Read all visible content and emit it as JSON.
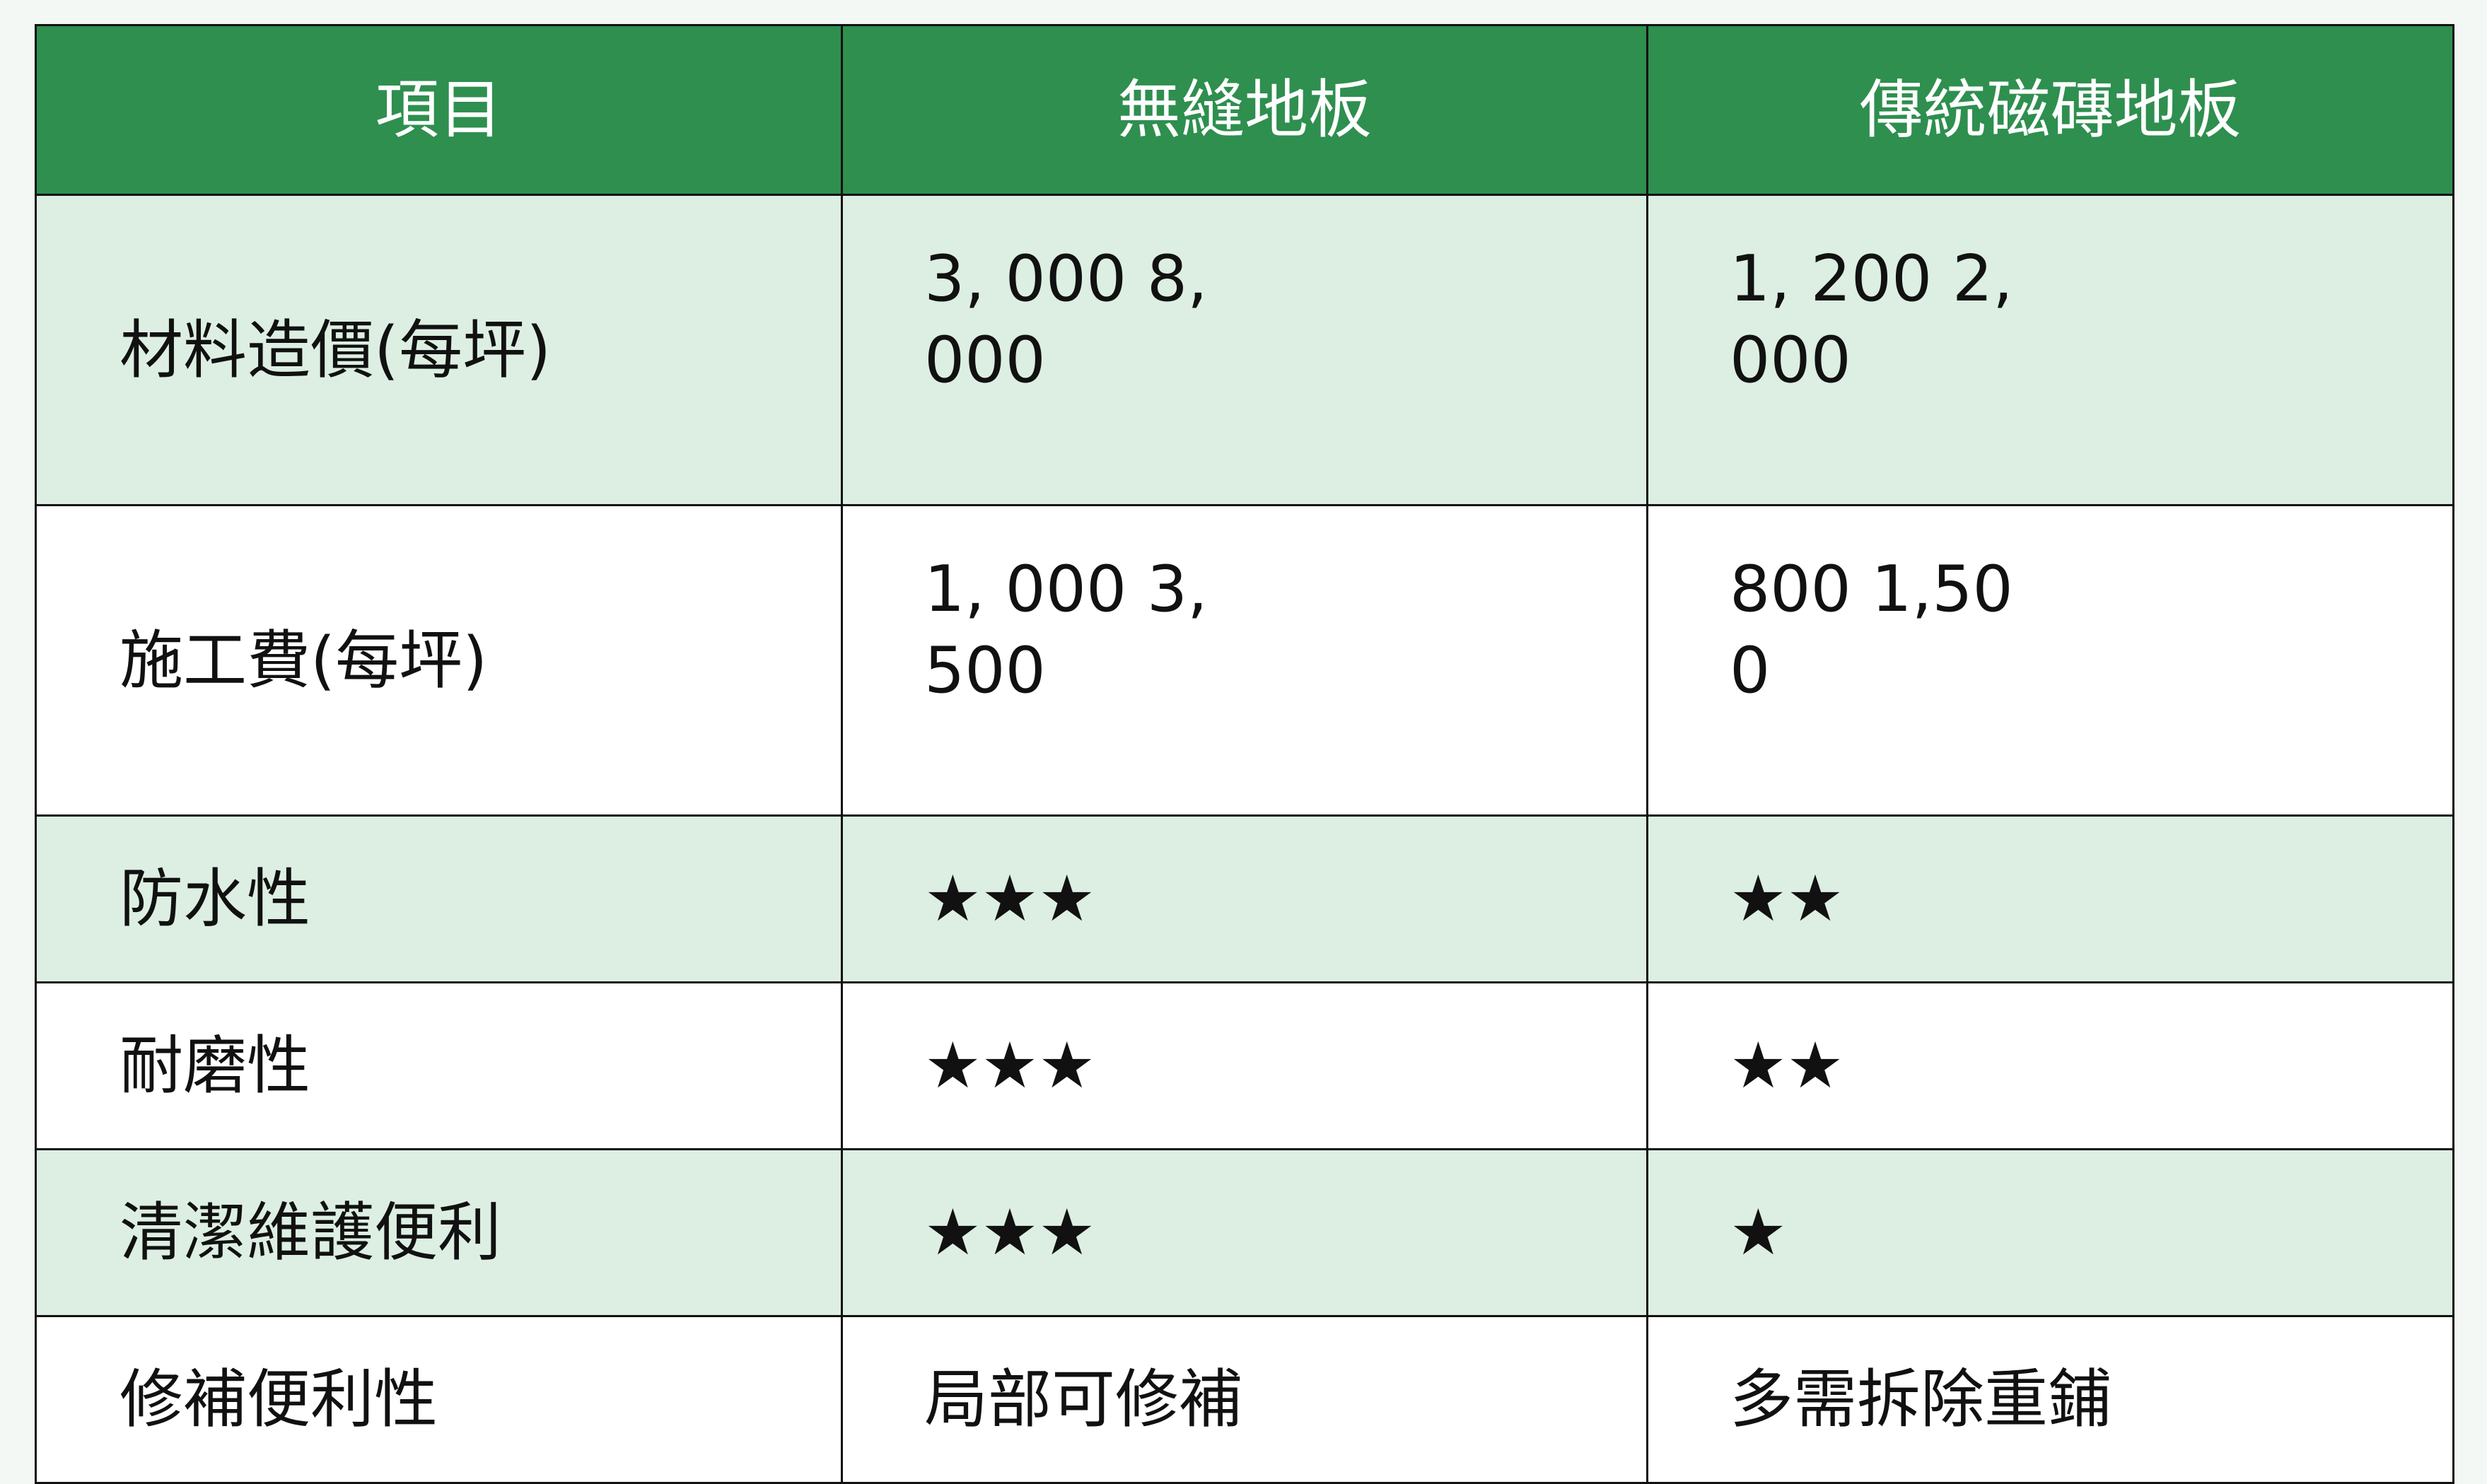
{
  "table": {
    "headers": [
      "項目",
      "無縫地板",
      "傳統磁磚地板"
    ],
    "rows": [
      {
        "label": "材料造價(每坪)",
        "seamless": "3, 000 8,\n000",
        "tile": "1, 200 2,\n000"
      },
      {
        "label": "施工費(每坪)",
        "seamless": "1, 000 3,\n500",
        "tile": "800 1,50\n0"
      },
      {
        "label": "防水性",
        "seamless": "★★★",
        "tile": "★★"
      },
      {
        "label": "耐磨性",
        "seamless": "★★★",
        "tile": "★★"
      },
      {
        "label": "清潔維護便利",
        "seamless": "★★★",
        "tile": "★"
      },
      {
        "label": "修補便利性",
        "seamless": "局部可修補",
        "tile": "多需拆除重鋪"
      }
    ]
  },
  "colors": {
    "header": "#2e8f4f",
    "shaded_row": "#dcefe2"
  }
}
